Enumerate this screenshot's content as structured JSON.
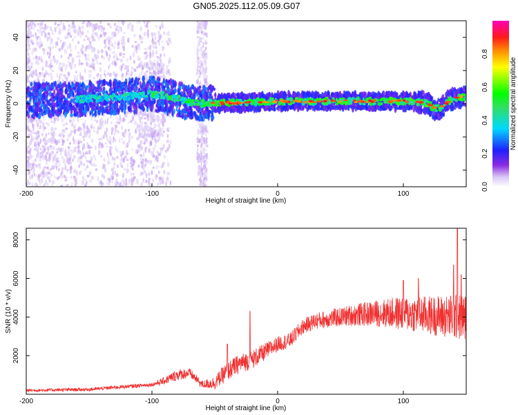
{
  "title": "GN05.2025.112.05.09.G07",
  "chart_data": [
    {
      "type": "heatmap",
      "xlabel": "Height of straight line (km)",
      "ylabel": "Frequency (Hz)",
      "xlim": [
        -200,
        150
      ],
      "ylim": [
        -50,
        50
      ],
      "xticks": [
        -200,
        -100,
        0,
        100
      ],
      "yticks": [
        -40,
        -20,
        0,
        20,
        40
      ],
      "colorbar": {
        "label": "Normalized spectral amplitude",
        "range": [
          0,
          1
        ],
        "ticks": [
          "0.0",
          "0.2",
          "0.4",
          "0.6",
          "0.8"
        ]
      },
      "ridge": {
        "x": [
          -200,
          -150,
          -110,
          -100,
          -90,
          -80,
          -70,
          -60,
          -55,
          -40,
          -20,
          0,
          20,
          60,
          100,
          115,
          120,
          125,
          130,
          135,
          140,
          145,
          150
        ],
        "y": [
          2,
          3,
          5,
          6,
          5,
          3,
          1,
          0,
          0.5,
          0.5,
          1,
          1.5,
          1.5,
          1.5,
          1.5,
          1,
          0,
          -3,
          -2,
          1,
          3,
          4,
          4
        ]
      }
    },
    {
      "type": "line",
      "xlabel": "Height of straight line (km)",
      "ylabel": "SNR (10 * v/v)",
      "xlim": [
        -200,
        150
      ],
      "ylim": [
        0,
        8600
      ],
      "xticks": [
        -200,
        -100,
        0,
        100
      ],
      "yticks": [
        2000,
        4000,
        6000,
        8000
      ],
      "color": "#f03030",
      "trend": {
        "x": [
          -200,
          -150,
          -120,
          -100,
          -90,
          -80,
          -70,
          -60,
          -50,
          -40,
          -30,
          -20,
          -10,
          0,
          10,
          20,
          30,
          40,
          50,
          60,
          80,
          100,
          120,
          140,
          150
        ],
        "y": [
          200,
          250,
          400,
          500,
          700,
          1000,
          1100,
          500,
          600,
          1200,
          1600,
          1800,
          2200,
          2600,
          2800,
          3500,
          3800,
          3900,
          4000,
          4100,
          4200,
          4200,
          4100,
          4000,
          4000
        ]
      },
      "spread": {
        "x": [
          -200,
          -100,
          -80,
          -60,
          -40,
          -20,
          0,
          20,
          50,
          80,
          100,
          120,
          140,
          150
        ],
        "y": [
          80,
          100,
          300,
          200,
          500,
          500,
          400,
          400,
          500,
          700,
          900,
          1000,
          1200,
          1200
        ]
      },
      "spikes": [
        {
          "x": -40,
          "y": 2600
        },
        {
          "x": -22,
          "y": 4300
        },
        {
          "x": 100,
          "y": 5900
        },
        {
          "x": 112,
          "y": 6000
        },
        {
          "x": 140,
          "y": 6700
        },
        {
          "x": 143,
          "y": 8600
        },
        {
          "x": 146,
          "y": 6200
        }
      ]
    }
  ]
}
